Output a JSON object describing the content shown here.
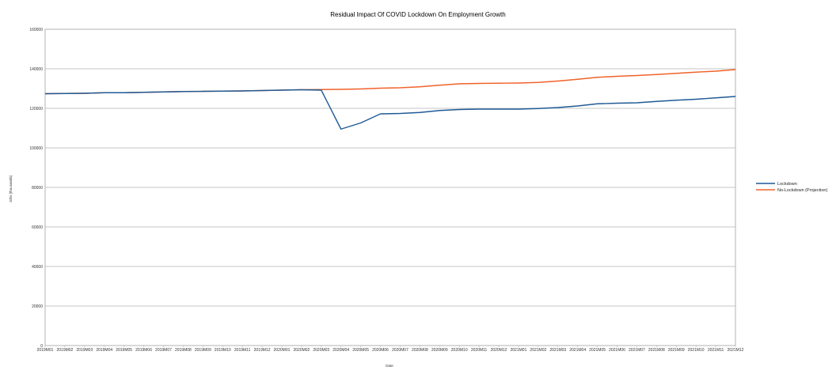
{
  "chart_data": {
    "type": "line",
    "title": "Residual Impact Of COVID Lockdown On Employment Growth",
    "xlabel": "Date",
    "ylabel": "Jobs (thousands)",
    "ylim": [
      0,
      160000
    ],
    "yticks": [
      0,
      20000,
      40000,
      60000,
      80000,
      100000,
      120000,
      140000,
      160000
    ],
    "grid": true,
    "legend_position": "right",
    "categories": [
      "2019M01",
      "2019M02",
      "2019M03",
      "2019M04",
      "2019M05",
      "2019M06",
      "2019M07",
      "2019M08",
      "2019M09",
      "2019M10",
      "2019M11",
      "2019M12",
      "2020M01",
      "2020M02",
      "2020M03",
      "2020M04",
      "2020M05",
      "2020M06",
      "2020M07",
      "2020M08",
      "2020M09",
      "2020M10",
      "2020M11",
      "2020M12",
      "2021M01",
      "2021M02",
      "2021M03",
      "2021M04",
      "2021M05",
      "2021M06",
      "2021M07",
      "2021M08",
      "2021M09",
      "2021M10",
      "2021M11",
      "2021M12"
    ],
    "series": [
      {
        "name": "Lockdown",
        "color": "#1f5a96",
        "values": [
          127400,
          127500,
          127600,
          127900,
          127900,
          128100,
          128300,
          128500,
          128600,
          128700,
          128800,
          129000,
          129200,
          129400,
          129200,
          109500,
          112600,
          117200,
          117400,
          117900,
          118900,
          119400,
          119600,
          119600,
          119600,
          119900,
          120400,
          121200,
          122300,
          122600,
          122800,
          123500,
          124100,
          124600,
          125300,
          126000
        ]
      },
      {
        "name": "No-Lockdown (Projection)",
        "color": "#f0622a",
        "values": [
          127400,
          127500,
          127600,
          127900,
          127900,
          128100,
          128300,
          128500,
          128600,
          128700,
          128800,
          129000,
          129200,
          129400,
          129500,
          129600,
          129800,
          130200,
          130400,
          130900,
          131700,
          132400,
          132600,
          132700,
          132800,
          133100,
          133800,
          134700,
          135700,
          136200,
          136600,
          137100,
          137700,
          138300,
          138800,
          139600
        ]
      }
    ]
  }
}
